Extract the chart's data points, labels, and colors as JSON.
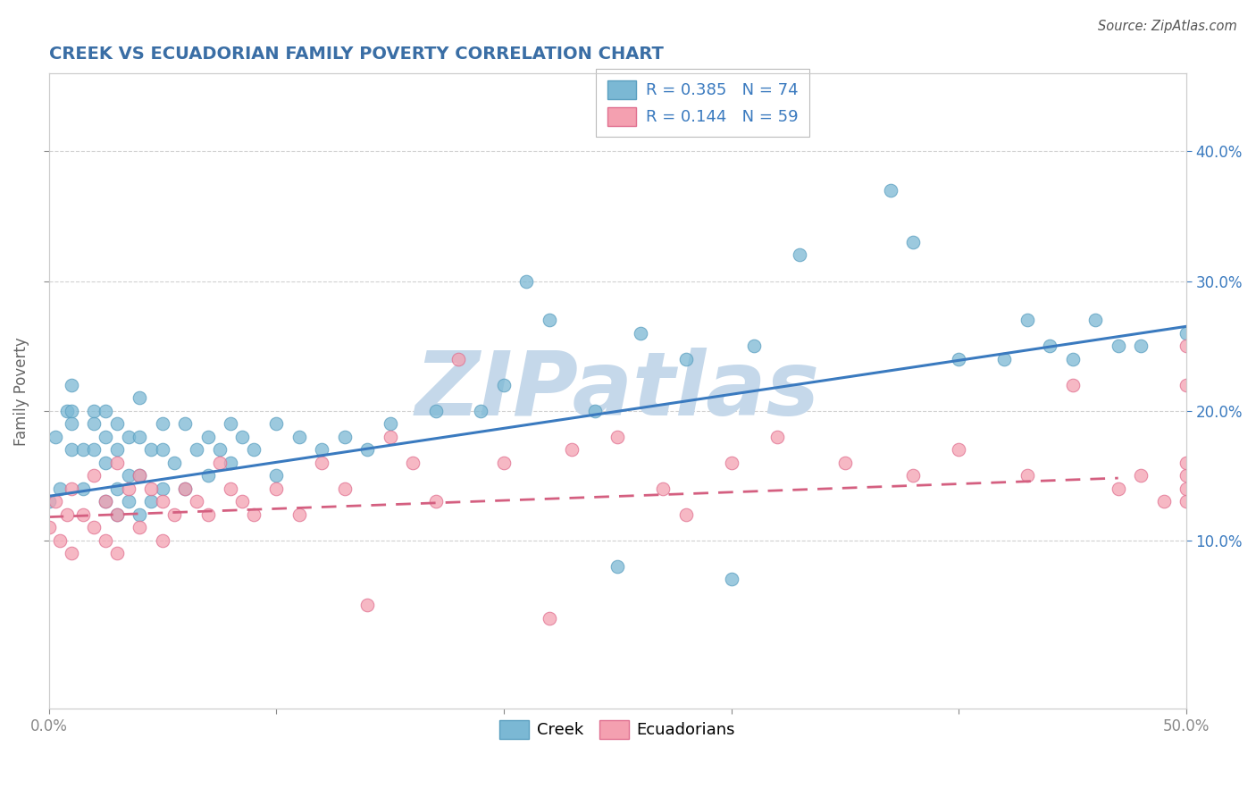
{
  "title": "CREEK VS ECUADORIAN FAMILY POVERTY CORRELATION CHART",
  "source": "Source: ZipAtlas.com",
  "xlabel": "",
  "ylabel": "Family Poverty",
  "xlim": [
    0.0,
    0.5
  ],
  "ylim": [
    -0.03,
    0.46
  ],
  "xticks": [
    0.0,
    0.1,
    0.2,
    0.3,
    0.4,
    0.5
  ],
  "xticklabels": [
    "0.0%",
    "",
    "",
    "",
    "",
    "50.0%"
  ],
  "yticks": [
    0.1,
    0.2,
    0.3,
    0.4
  ],
  "yticklabels_right": [
    "10.0%",
    "20.0%",
    "30.0%",
    "40.0%"
  ],
  "creek_color": "#7bb8d4",
  "creek_edge_color": "#5a9fc0",
  "ecuadorian_color": "#f4a0b0",
  "ecuadorian_edge_color": "#e07090",
  "creek_line_color": "#3a7abf",
  "ecuadorian_line_color": "#d45f80",
  "watermark": "ZIPatlas",
  "legend_r_creek": "R = 0.385",
  "legend_n_creek": "N = 74",
  "legend_r_ecuadorian": "R = 0.144",
  "legend_n_ecuadorian": "N = 59",
  "creek_scatter_x": [
    0.0,
    0.003,
    0.005,
    0.008,
    0.01,
    0.01,
    0.01,
    0.01,
    0.015,
    0.015,
    0.02,
    0.02,
    0.02,
    0.025,
    0.025,
    0.025,
    0.025,
    0.03,
    0.03,
    0.03,
    0.03,
    0.035,
    0.035,
    0.035,
    0.04,
    0.04,
    0.04,
    0.04,
    0.045,
    0.045,
    0.05,
    0.05,
    0.05,
    0.055,
    0.06,
    0.06,
    0.065,
    0.07,
    0.07,
    0.075,
    0.08,
    0.08,
    0.085,
    0.09,
    0.1,
    0.1,
    0.11,
    0.12,
    0.13,
    0.14,
    0.15,
    0.17,
    0.19,
    0.2,
    0.21,
    0.22,
    0.24,
    0.25,
    0.26,
    0.28,
    0.3,
    0.31,
    0.33,
    0.37,
    0.38,
    0.4,
    0.42,
    0.43,
    0.44,
    0.45,
    0.46,
    0.47,
    0.48,
    0.5
  ],
  "creek_scatter_y": [
    0.13,
    0.18,
    0.14,
    0.2,
    0.2,
    0.17,
    0.19,
    0.22,
    0.14,
    0.17,
    0.2,
    0.17,
    0.19,
    0.13,
    0.16,
    0.18,
    0.2,
    0.12,
    0.14,
    0.17,
    0.19,
    0.13,
    0.15,
    0.18,
    0.12,
    0.15,
    0.18,
    0.21,
    0.13,
    0.17,
    0.14,
    0.17,
    0.19,
    0.16,
    0.14,
    0.19,
    0.17,
    0.15,
    0.18,
    0.17,
    0.16,
    0.19,
    0.18,
    0.17,
    0.15,
    0.19,
    0.18,
    0.17,
    0.18,
    0.17,
    0.19,
    0.2,
    0.2,
    0.22,
    0.3,
    0.27,
    0.2,
    0.08,
    0.26,
    0.24,
    0.07,
    0.25,
    0.32,
    0.37,
    0.33,
    0.24,
    0.24,
    0.27,
    0.25,
    0.24,
    0.27,
    0.25,
    0.25,
    0.26
  ],
  "ecuadorian_scatter_x": [
    0.0,
    0.003,
    0.005,
    0.008,
    0.01,
    0.01,
    0.015,
    0.02,
    0.02,
    0.025,
    0.025,
    0.03,
    0.03,
    0.03,
    0.035,
    0.04,
    0.04,
    0.045,
    0.05,
    0.05,
    0.055,
    0.06,
    0.065,
    0.07,
    0.075,
    0.08,
    0.085,
    0.09,
    0.1,
    0.11,
    0.12,
    0.13,
    0.14,
    0.15,
    0.16,
    0.17,
    0.18,
    0.2,
    0.22,
    0.23,
    0.25,
    0.27,
    0.28,
    0.3,
    0.32,
    0.35,
    0.38,
    0.4,
    0.43,
    0.45,
    0.47,
    0.48,
    0.49,
    0.5,
    0.5,
    0.5,
    0.5,
    0.5,
    0.5
  ],
  "ecuadorian_scatter_y": [
    0.11,
    0.13,
    0.1,
    0.12,
    0.09,
    0.14,
    0.12,
    0.11,
    0.15,
    0.1,
    0.13,
    0.09,
    0.12,
    0.16,
    0.14,
    0.11,
    0.15,
    0.14,
    0.1,
    0.13,
    0.12,
    0.14,
    0.13,
    0.12,
    0.16,
    0.14,
    0.13,
    0.12,
    0.14,
    0.12,
    0.16,
    0.14,
    0.05,
    0.18,
    0.16,
    0.13,
    0.24,
    0.16,
    0.04,
    0.17,
    0.18,
    0.14,
    0.12,
    0.16,
    0.18,
    0.16,
    0.15,
    0.17,
    0.15,
    0.22,
    0.14,
    0.15,
    0.13,
    0.15,
    0.13,
    0.16,
    0.25,
    0.14,
    0.22
  ],
  "creek_line_x": [
    0.0,
    0.5
  ],
  "creek_line_y": [
    0.134,
    0.265
  ],
  "ecuadorian_line_x": [
    0.0,
    0.47
  ],
  "ecuadorian_line_y": [
    0.118,
    0.148
  ],
  "background_color": "#ffffff",
  "grid_color": "#d0d0d0",
  "title_color": "#3a6ea5",
  "title_fontsize": 14,
  "axis_label_color": "#666666",
  "tick_color_left": "#888888",
  "tick_color_right": "#3a7abf",
  "watermark_color": "#c5d8ea",
  "watermark_fontsize": 72,
  "legend_fontsize": 13,
  "bottom_legend_label_color": "#000000"
}
